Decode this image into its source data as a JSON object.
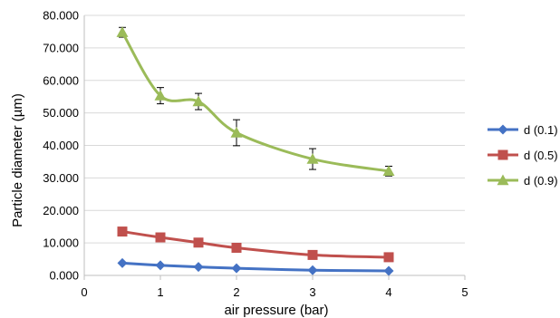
{
  "chart_data": {
    "type": "line",
    "title": "",
    "xlabel": "air pressure (bar)",
    "ylabel": "Particle diameter (µm)",
    "xlim": [
      0,
      5
    ],
    "ylim": [
      0,
      80
    ],
    "x_ticks": [
      0,
      1,
      2,
      3,
      4,
      5
    ],
    "x_tick_labels": [
      "0",
      "1",
      "2",
      "3",
      "4",
      "5"
    ],
    "y_ticks": [
      0,
      10,
      20,
      30,
      40,
      50,
      60,
      70,
      80
    ],
    "y_tick_labels": [
      "0.000",
      "10.000",
      "20.000",
      "30.000",
      "40.000",
      "50.000",
      "60.000",
      "70.000",
      "80.000"
    ],
    "grid": "horizontal",
    "legend_position": "right",
    "smoothed": true,
    "x": [
      0.5,
      1,
      1.5,
      2,
      3,
      4
    ],
    "series": [
      {
        "name": "d (0.1)",
        "color": "#4472C4",
        "marker": "diamond",
        "values": [
          3.8,
          3.1,
          2.6,
          2.2,
          1.6,
          1.4
        ]
      },
      {
        "name": "d (0.5)",
        "color": "#C0504D",
        "marker": "square",
        "values": [
          13.5,
          11.7,
          10.1,
          8.5,
          6.3,
          5.6
        ]
      },
      {
        "name": "d (0.9)",
        "color": "#9BBB59",
        "marker": "triangle",
        "values": [
          74.8,
          55.3,
          53.5,
          43.9,
          35.8,
          32.1
        ],
        "error": [
          1.5,
          2.5,
          2.5,
          4.0,
          3.2,
          1.5
        ]
      }
    ]
  }
}
